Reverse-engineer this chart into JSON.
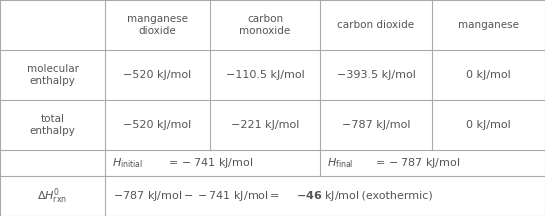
{
  "col_headers": [
    "manganese\ndioxide",
    "carbon\nmonoxide",
    "carbon dioxide",
    "manganese"
  ],
  "mol_enthalpy": [
    "−520 kJ/mol",
    "−110.5 kJ/mol",
    "−393.5 kJ/mol",
    "0 kJ/mol"
  ],
  "total_enthalpy": [
    "−520 kJ/mol",
    "−221 kJ/mol",
    "−787 kJ/mol",
    "0 kJ/mol"
  ],
  "bg_color": "#ffffff",
  "grid_color": "#aaaaaa",
  "text_color": "#555555",
  "header_fontsize": 7.5,
  "cell_fontsize": 8.0
}
